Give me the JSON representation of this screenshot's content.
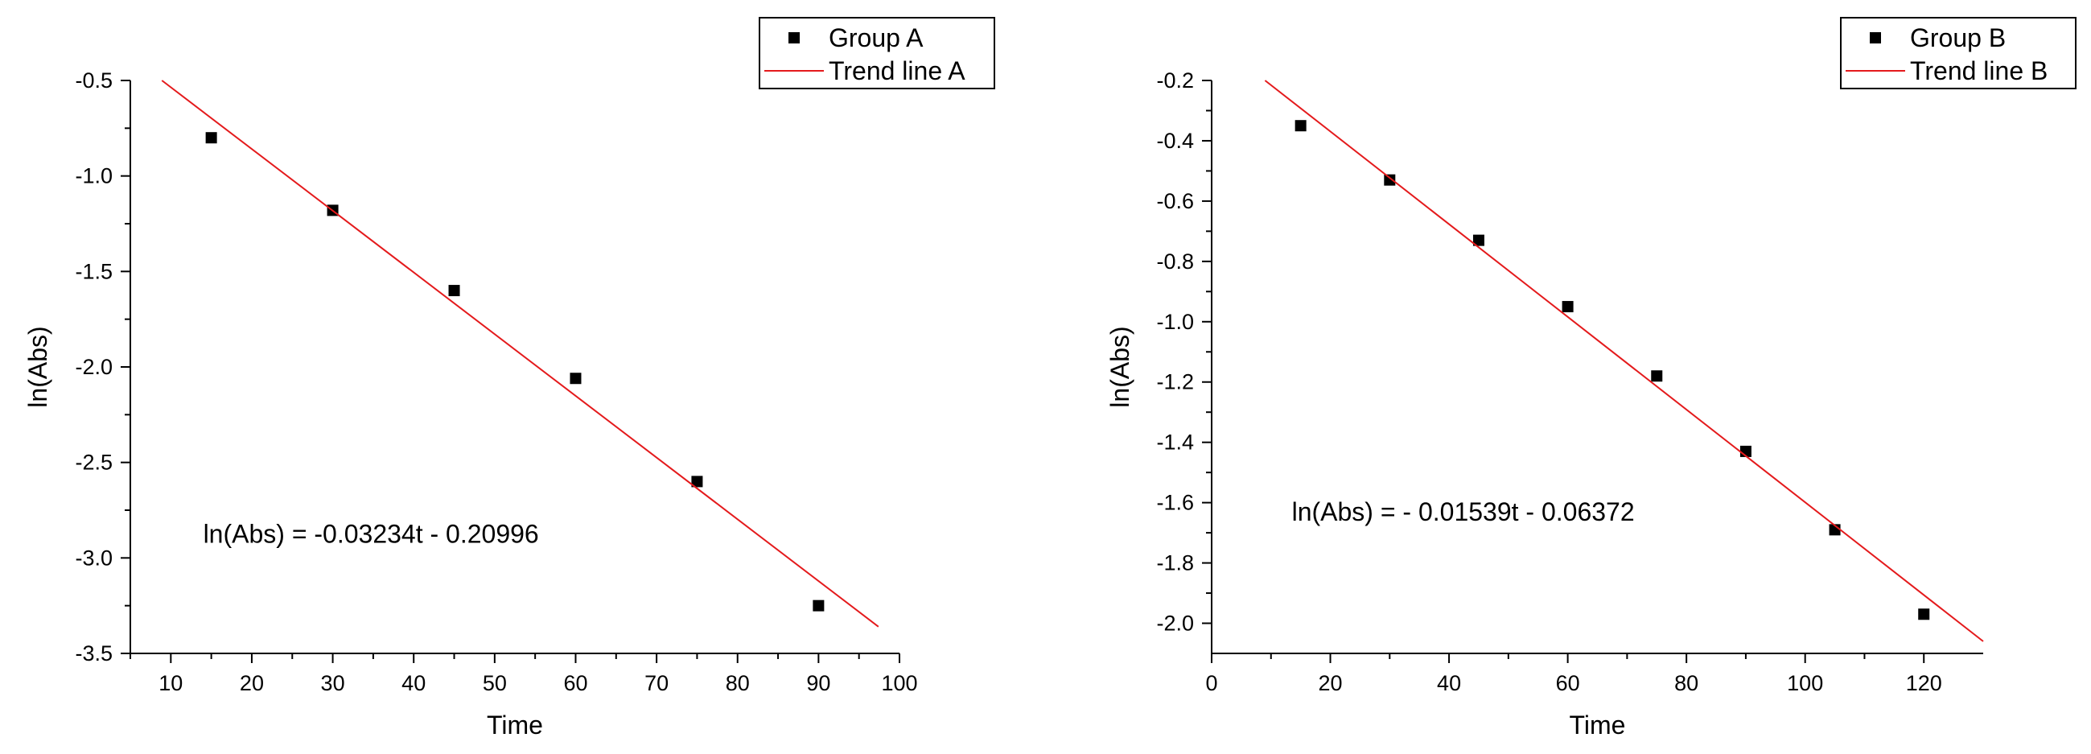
{
  "chart_data": [
    {
      "type": "scatter",
      "xlabel": "Time",
      "ylabel": "ln(Abs)",
      "xlim": [
        5,
        100
      ],
      "ylim": [
        -3.5,
        -0.5
      ],
      "xticks": [
        10,
        20,
        30,
        40,
        50,
        60,
        70,
        80,
        90,
        100
      ],
      "xtick_labels": [
        "10",
        "20",
        "30",
        "40",
        "50",
        "60",
        "70",
        "80",
        "90",
        "100"
      ],
      "yticks": [
        -0.5,
        -1.0,
        -1.5,
        -2.0,
        -2.5,
        -3.0,
        -3.5
      ],
      "ytick_labels": [
        "-0.5",
        "-1.0",
        "-1.5",
        "-2.0",
        "-2.5",
        "-3.0",
        "-3.5"
      ],
      "series": [
        {
          "name": "Group A",
          "kind": "points",
          "color": "#000000",
          "x": [
            15,
            30,
            45,
            60,
            75,
            90
          ],
          "y": [
            -0.8,
            -1.18,
            -1.6,
            -2.06,
            -2.6,
            -3.25
          ]
        },
        {
          "name": "Trend line A",
          "kind": "line",
          "color": "#e41a1c",
          "x": [
            8.9,
            97.4
          ],
          "y": [
            -0.5,
            -3.36
          ]
        }
      ],
      "annotation": {
        "text": "ln(Abs) = -0.03234t - 0.20996",
        "x": 14,
        "y": -2.92
      },
      "legend": "top-right",
      "grid": false
    },
    {
      "type": "scatter",
      "xlabel": "Time",
      "ylabel": "ln(Abs)",
      "xlim": [
        0,
        130
      ],
      "ylim": [
        -2.1,
        -0.2
      ],
      "xticks": [
        0,
        20,
        40,
        60,
        80,
        100,
        120
      ],
      "xtick_labels": [
        "0",
        "20",
        "40",
        "60",
        "80",
        "100",
        "120"
      ],
      "yticks": [
        -0.2,
        -0.4,
        -0.6,
        -0.8,
        -1.0,
        -1.2,
        -1.4,
        -1.6,
        -1.8,
        -2.0
      ],
      "ytick_labels": [
        "-0.2",
        "-0.4",
        "-0.6",
        "-0.8",
        "-1.0",
        "-1.2",
        "-1.4",
        "-1.6",
        "-1.8",
        "-2.0"
      ],
      "series": [
        {
          "name": "Group B",
          "kind": "points",
          "color": "#000000",
          "x": [
            15,
            30,
            45,
            60,
            75,
            90,
            105,
            120
          ],
          "y": [
            -0.35,
            -0.53,
            -0.73,
            -0.95,
            -1.18,
            -1.43,
            -1.69,
            -1.97
          ]
        },
        {
          "name": "Trend line B",
          "kind": "line",
          "color": "#e41a1c",
          "x": [
            9,
            130
          ],
          "y": [
            -0.2,
            -2.06
          ]
        }
      ],
      "annotation": {
        "text": "ln(Abs) = - 0.01539t - 0.06372",
        "x": 13.5,
        "y": -1.66
      },
      "legend": "top-right",
      "grid": false
    }
  ]
}
